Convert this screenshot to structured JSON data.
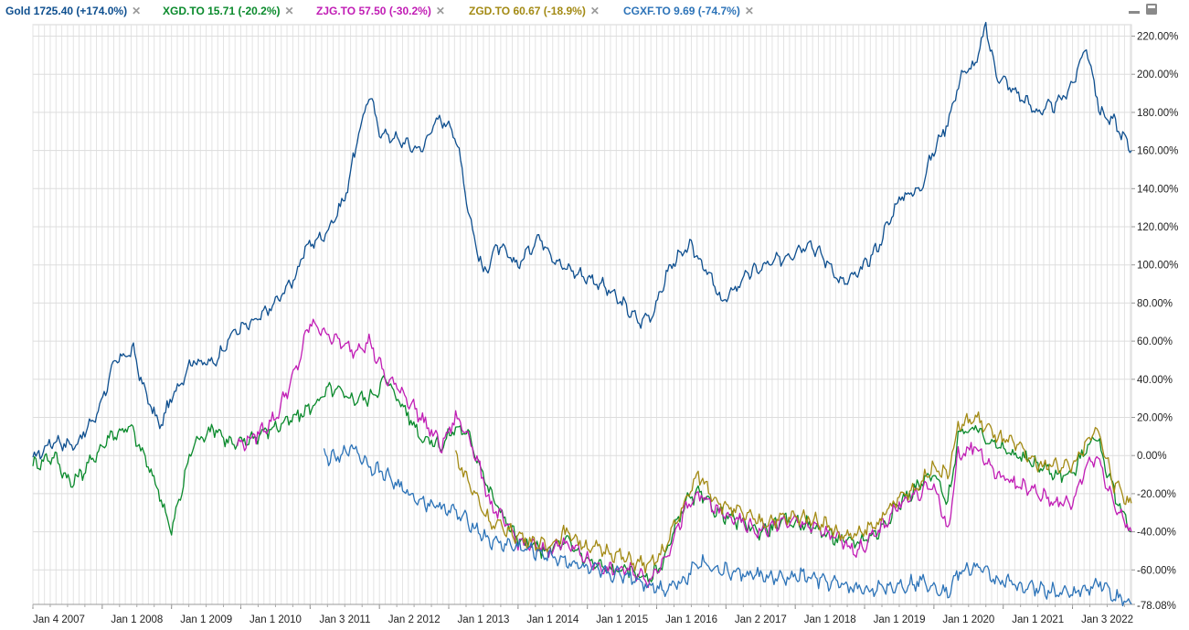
{
  "legend": [
    {
      "label": "Gold 1725.40 (+174.0%)",
      "color": "#0e4f8f"
    },
    {
      "label": "XGD.TO 15.71 (-20.2%)",
      "color": "#0a8a2c"
    },
    {
      "label": "ZJG.TO 57.50 (-30.2%)",
      "color": "#c11db5"
    },
    {
      "label": "ZGD.TO 60.67 (-18.9%)",
      "color": "#a38a14"
    },
    {
      "label": "CGXF.TO 9.69 (-74.7%)",
      "color": "#2c73b8"
    }
  ],
  "remove_glyph": "✕",
  "chart_data": {
    "type": "line",
    "x_ticks": [
      "Jan 4 2007",
      "Jan 1 2008",
      "Jan 1 2009",
      "Jan 1 2010",
      "Jan 3 2011",
      "Jan 2 2012",
      "Jan 1 2013",
      "Jan 1 2014",
      "Jan 1 2015",
      "Jan 1 2016",
      "Jan 2 2017",
      "Jan 1 2018",
      "Jan 1 2019",
      "Jan 1 2020",
      "Jan 1 2021",
      "Jan 3 2022"
    ],
    "y_ticks": [
      "220.00%",
      "200.00%",
      "180.00%",
      "160.00%",
      "140.00%",
      "120.00%",
      "100.00%",
      "80.00%",
      "60.00%",
      "40.00%",
      "20.00%",
      "0.00%",
      "-20.00%",
      "-40.00%",
      "-60.00%",
      "-78.08%"
    ],
    "ylim": [
      -78.08,
      226
    ],
    "xlim": [
      2007.0,
      2022.85
    ],
    "y_unit": "%",
    "grid": true,
    "series": [
      {
        "name": "Gold",
        "color": "#0e4f8f",
        "x": [
          2007.0,
          2007.3,
          2007.6,
          2007.9,
          2008.2,
          2008.45,
          2008.6,
          2008.83,
          2009.0,
          2009.3,
          2009.6,
          2009.9,
          2010.2,
          2010.5,
          2010.8,
          2010.95,
          2011.2,
          2011.5,
          2011.68,
          2011.85,
          2012.0,
          2012.3,
          2012.6,
          2012.8,
          2013.0,
          2013.15,
          2013.3,
          2013.5,
          2013.7,
          2014.0,
          2014.3,
          2014.6,
          2014.9,
          2015.2,
          2015.5,
          2015.75,
          2015.95,
          2016.2,
          2016.5,
          2016.75,
          2016.95,
          2017.3,
          2017.6,
          2017.9,
          2018.2,
          2018.5,
          2018.67,
          2018.9,
          2019.2,
          2019.5,
          2019.8,
          2020.0,
          2020.2,
          2020.4,
          2020.6,
          2020.75,
          2020.9,
          2021.2,
          2021.5,
          2021.8,
          2022.0,
          2022.2,
          2022.4,
          2022.6,
          2022.85
        ],
        "y": [
          -2,
          8,
          5,
          20,
          50,
          55,
          35,
          15,
          30,
          50,
          48,
          65,
          70,
          80,
          95,
          110,
          115,
          135,
          165,
          190,
          170,
          165,
          160,
          175,
          175,
          160,
          125,
          95,
          110,
          100,
          115,
          100,
          95,
          90,
          80,
          70,
          75,
          100,
          110,
          95,
          80,
          95,
          100,
          105,
          112,
          100,
          90,
          95,
          110,
          135,
          140,
          160,
          175,
          200,
          205,
          225,
          200,
          190,
          180,
          185,
          195,
          215,
          180,
          175,
          160
        ]
      },
      {
        "name": "XGD.TO",
        "color": "#0a8a2c",
        "x": [
          2007.0,
          2007.3,
          2007.55,
          2007.8,
          2008.1,
          2008.4,
          2008.6,
          2008.83,
          2009.0,
          2009.3,
          2009.6,
          2009.9,
          2010.2,
          2010.5,
          2010.8,
          2011.0,
          2011.3,
          2011.6,
          2011.85,
          2012.1,
          2012.35,
          2012.6,
          2012.9,
          2013.1,
          2013.3,
          2013.6,
          2014.0,
          2014.4,
          2014.7,
          2015.0,
          2015.3,
          2015.6,
          2015.9,
          2016.1,
          2016.4,
          2016.6,
          2016.9,
          2017.2,
          2017.5,
          2017.8,
          2018.1,
          2018.4,
          2018.67,
          2018.9,
          2019.2,
          2019.5,
          2019.8,
          2020.0,
          2020.2,
          2020.35,
          2020.6,
          2020.9,
          2021.2,
          2021.5,
          2021.8,
          2022.0,
          2022.2,
          2022.35,
          2022.6,
          2022.85
        ],
        "y": [
          -5,
          0,
          -15,
          -5,
          10,
          15,
          0,
          -20,
          -40,
          5,
          15,
          5,
          10,
          15,
          20,
          25,
          35,
          30,
          30,
          40,
          25,
          10,
          5,
          15,
          10,
          -20,
          -45,
          -50,
          -45,
          -55,
          -60,
          -60,
          -65,
          -55,
          -25,
          -20,
          -30,
          -35,
          -40,
          -35,
          -35,
          -40,
          -45,
          -45,
          -40,
          -25,
          -15,
          -10,
          -25,
          10,
          15,
          5,
          0,
          -5,
          -10,
          -10,
          5,
          10,
          -20,
          -40
        ]
      },
      {
        "name": "ZJG.TO",
        "color": "#c11db5",
        "x": [
          2009.95,
          2010.2,
          2010.5,
          2010.8,
          2011.0,
          2011.2,
          2011.4,
          2011.6,
          2011.85,
          2012.1,
          2012.3,
          2012.6,
          2012.9,
          2013.1,
          2013.3,
          2013.6,
          2014.0,
          2014.4,
          2014.7,
          2015.0,
          2015.3,
          2015.6,
          2015.9,
          2016.1,
          2016.4,
          2016.6,
          2016.9,
          2017.2,
          2017.5,
          2017.8,
          2018.1,
          2018.4,
          2018.67,
          2018.9,
          2019.2,
          2019.5,
          2019.8,
          2020.0,
          2020.2,
          2020.35,
          2020.6,
          2020.9,
          2021.2,
          2021.5,
          2021.8,
          2022.0,
          2022.2,
          2022.35,
          2022.6,
          2022.85
        ],
        "y": [
          5,
          10,
          20,
          45,
          70,
          65,
          60,
          55,
          60,
          40,
          35,
          20,
          5,
          20,
          10,
          -25,
          -45,
          -50,
          -45,
          -55,
          -60,
          -60,
          -65,
          -55,
          -30,
          -20,
          -30,
          -35,
          -40,
          -35,
          -35,
          -40,
          -45,
          -50,
          -40,
          -25,
          -20,
          -15,
          -40,
          0,
          5,
          -10,
          -15,
          -20,
          -25,
          -25,
          -5,
          0,
          -25,
          -40
        ]
      },
      {
        "name": "ZGD.TO",
        "color": "#a38a14",
        "x": [
          2013.1,
          2013.3,
          2013.6,
          2014.0,
          2014.4,
          2014.7,
          2015.0,
          2015.3,
          2015.6,
          2015.9,
          2016.1,
          2016.4,
          2016.6,
          2016.9,
          2017.2,
          2017.5,
          2017.8,
          2018.1,
          2018.4,
          2018.67,
          2018.9,
          2019.2,
          2019.5,
          2019.8,
          2020.0,
          2020.2,
          2020.35,
          2020.6,
          2020.9,
          2021.2,
          2021.5,
          2021.8,
          2022.0,
          2022.2,
          2022.35,
          2022.6,
          2022.85
        ],
        "y": [
          0,
          -15,
          -35,
          -42,
          -48,
          -40,
          -48,
          -50,
          -55,
          -58,
          -50,
          -25,
          -10,
          -25,
          -30,
          -35,
          -33,
          -32,
          -35,
          -42,
          -42,
          -35,
          -22,
          -15,
          -5,
          -10,
          15,
          20,
          10,
          5,
          -5,
          -5,
          -5,
          5,
          15,
          -15,
          -25
        ]
      },
      {
        "name": "CGXF.TO",
        "color": "#2c73b8",
        "x": [
          2011.2,
          2011.4,
          2011.6,
          2011.85,
          2012.1,
          2012.4,
          2012.7,
          2013.0,
          2013.3,
          2013.6,
          2014.0,
          2014.4,
          2014.7,
          2015.0,
          2015.3,
          2015.6,
          2015.9,
          2016.1,
          2016.4,
          2016.6,
          2016.9,
          2017.2,
          2017.5,
          2017.8,
          2018.1,
          2018.4,
          2018.67,
          2018.9,
          2019.2,
          2019.5,
          2019.8,
          2020.0,
          2020.2,
          2020.35,
          2020.6,
          2020.9,
          2021.2,
          2021.5,
          2021.8,
          2022.0,
          2022.2,
          2022.4,
          2022.6,
          2022.85
        ],
        "y": [
          0,
          -2,
          5,
          -5,
          -10,
          -20,
          -25,
          -28,
          -35,
          -45,
          -48,
          -52,
          -55,
          -60,
          -62,
          -63,
          -68,
          -70,
          -65,
          -55,
          -60,
          -62,
          -63,
          -65,
          -63,
          -66,
          -68,
          -70,
          -70,
          -68,
          -66,
          -68,
          -72,
          -62,
          -58,
          -65,
          -68,
          -70,
          -72,
          -72,
          -70,
          -66,
          -74,
          -78
        ]
      }
    ]
  }
}
